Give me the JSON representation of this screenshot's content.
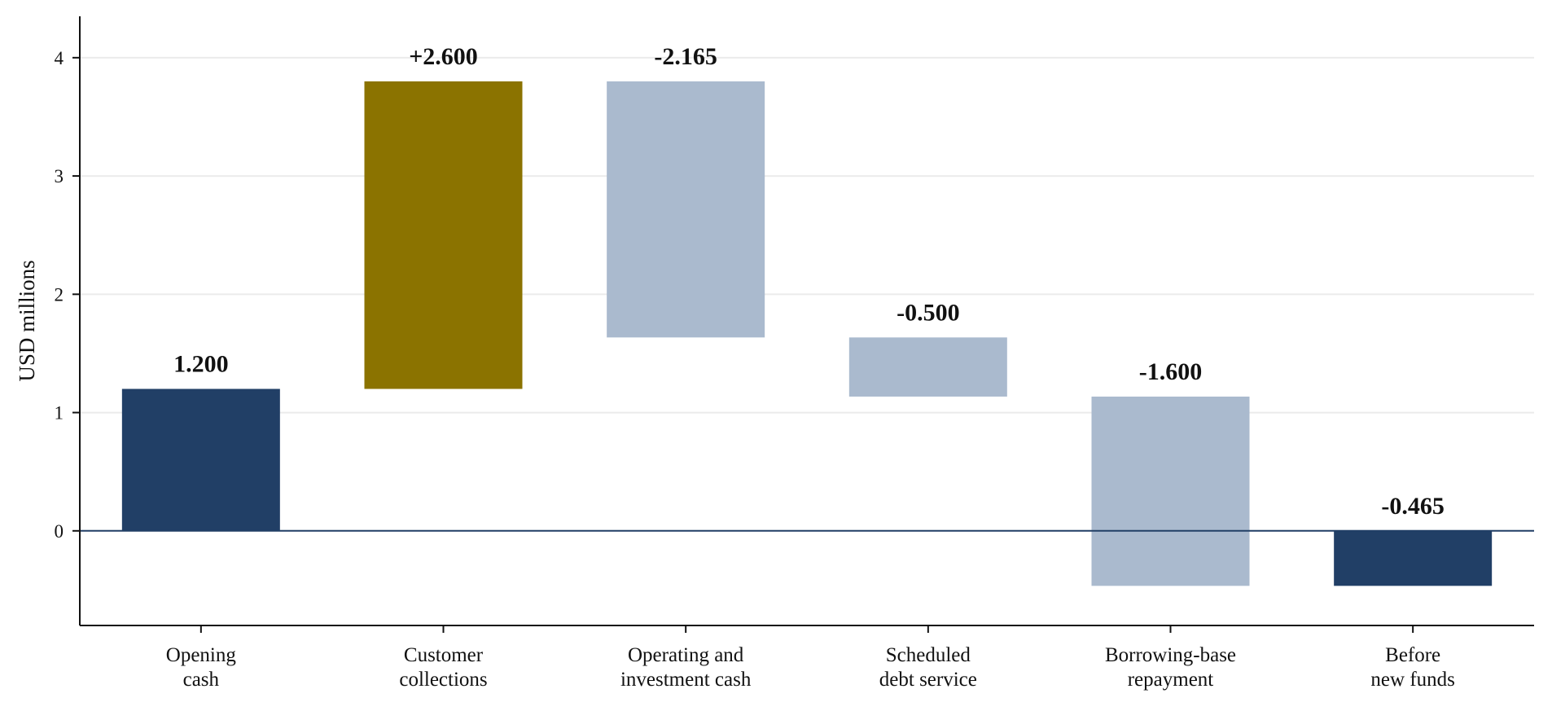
{
  "chart_data": {
    "type": "bar",
    "subtype": "waterfall",
    "title": "",
    "xlabel": "",
    "ylabel": "USD millions",
    "ylim": [
      -0.8,
      4.35
    ],
    "yticks": [
      0,
      1,
      2,
      3,
      4
    ],
    "grid": "horizontal",
    "categories": [
      [
        "Opening",
        "cash"
      ],
      [
        "Customer",
        "collections"
      ],
      [
        "Operating and",
        "investment cash"
      ],
      [
        "Scheduled",
        "debt service"
      ],
      [
        "Borrowing-base",
        "repayment"
      ],
      [
        "Before",
        "new funds"
      ]
    ],
    "bars": [
      {
        "kind": "total",
        "start": 0,
        "end": 1.2,
        "label": "1.200"
      },
      {
        "kind": "increase",
        "start": 1.2,
        "end": 3.8,
        "label": "+2.600"
      },
      {
        "kind": "decrease",
        "start": 3.8,
        "end": 1.635,
        "label": "-2.165"
      },
      {
        "kind": "decrease",
        "start": 1.635,
        "end": 1.135,
        "label": "-0.500"
      },
      {
        "kind": "decrease",
        "start": 1.135,
        "end": -0.465,
        "label": "-1.600"
      },
      {
        "kind": "total",
        "start": 0,
        "end": -0.465,
        "label": "-0.465"
      }
    ],
    "colors": {
      "total": "#213f66",
      "increase": "#8b7300",
      "decrease": "#aabace",
      "zero_line": "#213f66",
      "grid": "#ebebeb"
    }
  }
}
